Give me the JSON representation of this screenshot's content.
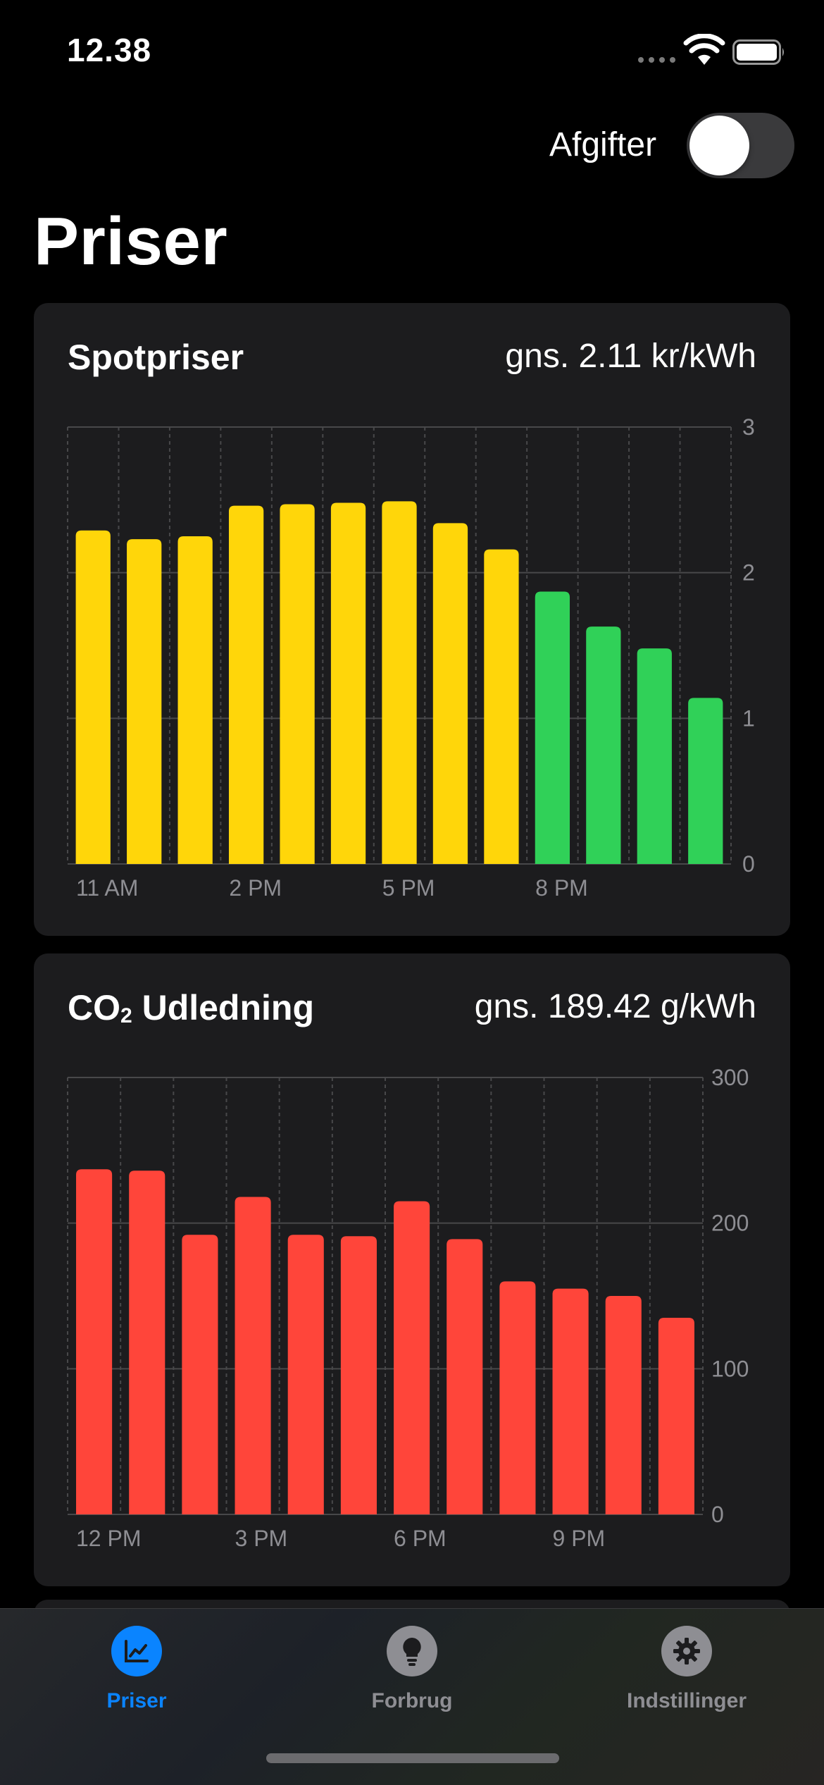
{
  "status_bar": {
    "time": "12.38"
  },
  "header": {
    "fees_label": "Afgifter",
    "fees_enabled": false,
    "title": "Priser"
  },
  "colors": {
    "yellow": "#ffd60a",
    "green": "#30d158",
    "red": "#ff453a",
    "accent": "#0a84ff"
  },
  "cards": {
    "spot": {
      "title": "Spotpriser",
      "average": "gns. 2.11 kr/kWh"
    },
    "co2": {
      "title_main": "CO",
      "title_sub": "2",
      "title_rest": " Udledning",
      "average": "gns. 189.42 g/kWh"
    }
  },
  "chart_data": [
    {
      "type": "bar",
      "categories": [
        "11 AM",
        "12 PM",
        "1 PM",
        "2 PM",
        "3 PM",
        "4 PM",
        "5 PM",
        "6 PM",
        "7 PM",
        "8 PM",
        "9 PM",
        "10 PM",
        "11 PM"
      ],
      "values": [
        2.29,
        2.23,
        2.25,
        2.46,
        2.47,
        2.48,
        2.49,
        2.34,
        2.16,
        1.87,
        1.63,
        1.48,
        1.14
      ],
      "bar_colors": [
        "yellow",
        "yellow",
        "yellow",
        "yellow",
        "yellow",
        "yellow",
        "yellow",
        "yellow",
        "yellow",
        "green",
        "green",
        "green",
        "green"
      ],
      "x_tick_labels": [
        "11 AM",
        "2 PM",
        "5 PM",
        "8 PM"
      ],
      "y_ticks": [
        "0",
        "1",
        "2",
        "3"
      ],
      "ylim": [
        0,
        3
      ],
      "grid": true,
      "y_axis_position": "right"
    },
    {
      "type": "bar",
      "categories": [
        "12 PM",
        "1 PM",
        "2 PM",
        "3 PM",
        "4 PM",
        "5 PM",
        "6 PM",
        "7 PM",
        "8 PM",
        "9 PM",
        "10 PM",
        "11 PM"
      ],
      "values": [
        237,
        236,
        192,
        218,
        192,
        191,
        215,
        189,
        160,
        155,
        150,
        135
      ],
      "bar_colors": [
        "red",
        "red",
        "red",
        "red",
        "red",
        "red",
        "red",
        "red",
        "red",
        "red",
        "red",
        "red"
      ],
      "x_tick_labels": [
        "12 PM",
        "3 PM",
        "6 PM",
        "9 PM"
      ],
      "y_ticks": [
        "0",
        "100",
        "200",
        "300"
      ],
      "ylim": [
        0,
        300
      ],
      "grid": true,
      "y_axis_position": "right"
    }
  ],
  "tab_bar": {
    "items": [
      {
        "label": "Priser",
        "icon": "chart-icon",
        "selected": true
      },
      {
        "label": "Forbrug",
        "icon": "lightbulb-icon",
        "selected": false
      },
      {
        "label": "Indstillinger",
        "icon": "gear-icon",
        "selected": false
      }
    ]
  }
}
